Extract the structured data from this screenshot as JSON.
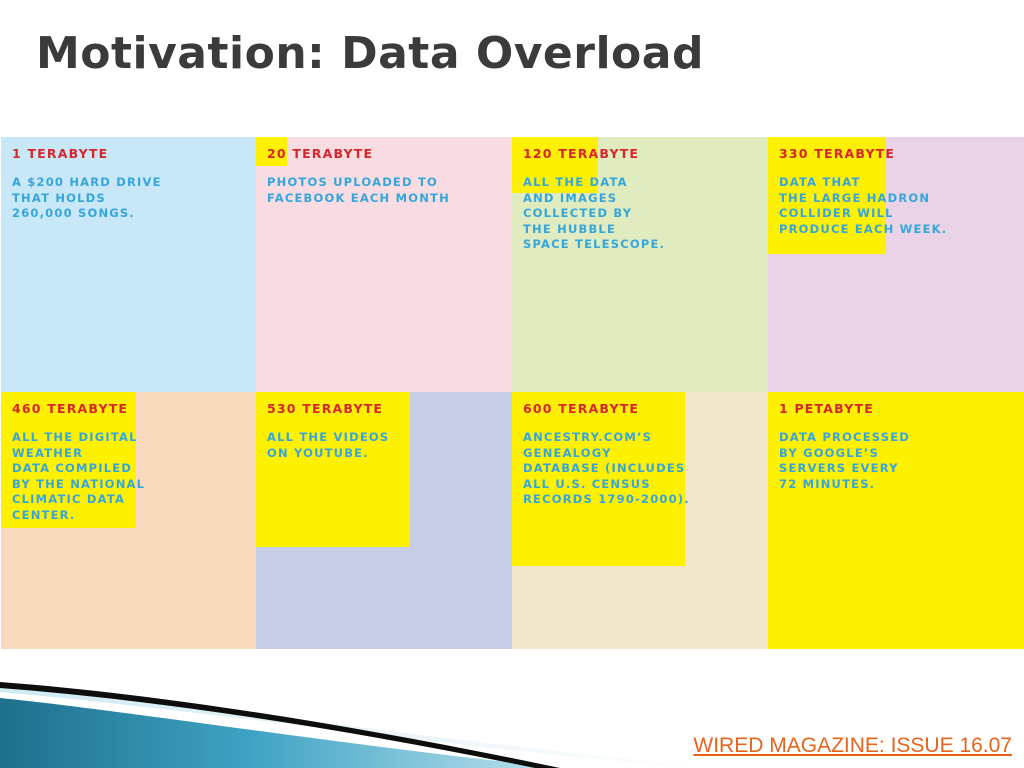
{
  "title": "Motivation: Data Overload",
  "cells": [
    {
      "amount": "1 TERABYTE",
      "description": "A $200 HARD DRIVE\nTHAT HOLDS\n260,000 SONGS."
    },
    {
      "amount": "20 TERABYTE",
      "description": "PHOTOS UPLOADED TO\nFACEBOOK EACH MONTH"
    },
    {
      "amount": "120 TERABYTE",
      "description": "ALL THE DATA\nAND IMAGES\nCOLLECTED BY\nTHE HUBBLE\nSPACE TELESCOPE."
    },
    {
      "amount": "330 TERABYTE",
      "description": "DATA THAT\nTHE LARGE HADRON\nCOLLIDER WILL\nPRODUCE EACH WEEK."
    },
    {
      "amount": "460 TERABYTE",
      "description": "ALL THE DIGITAL\nWEATHER\nDATA COMPILED\nBY THE NATIONAL\nCLIMATIC DATA\nCENTER."
    },
    {
      "amount": "530 TERABYTE",
      "description": "ALL THE VIDEOS\nON YOUTUBE."
    },
    {
      "amount": "600 TERABYTE",
      "description": "ANCESTRY.COM’S\nGENEALOGY\nDATABASE (INCLUDES\nALL U.S. CENSUS\nRECORDS 1790-2000)."
    },
    {
      "amount": "1 PETABYTE",
      "description": "DATA PROCESSED\nBY GOOGLE’S\nSERVERS EVERY\n72 MINUTES."
    }
  ],
  "colors": {
    "amount_text": "#d8262d",
    "description_text": "#35a6dc",
    "highlight": "#fdf000",
    "cell_backgrounds": [
      "#c9e8f7",
      "#f9dce1",
      "#e0ecbf",
      "#ead3e6",
      "#f9d9bd",
      "#c6cde6",
      "#f3e7cb",
      "#fdf000"
    ]
  },
  "source_link": "WIRED MAGAZINE: ISSUE 16.07"
}
